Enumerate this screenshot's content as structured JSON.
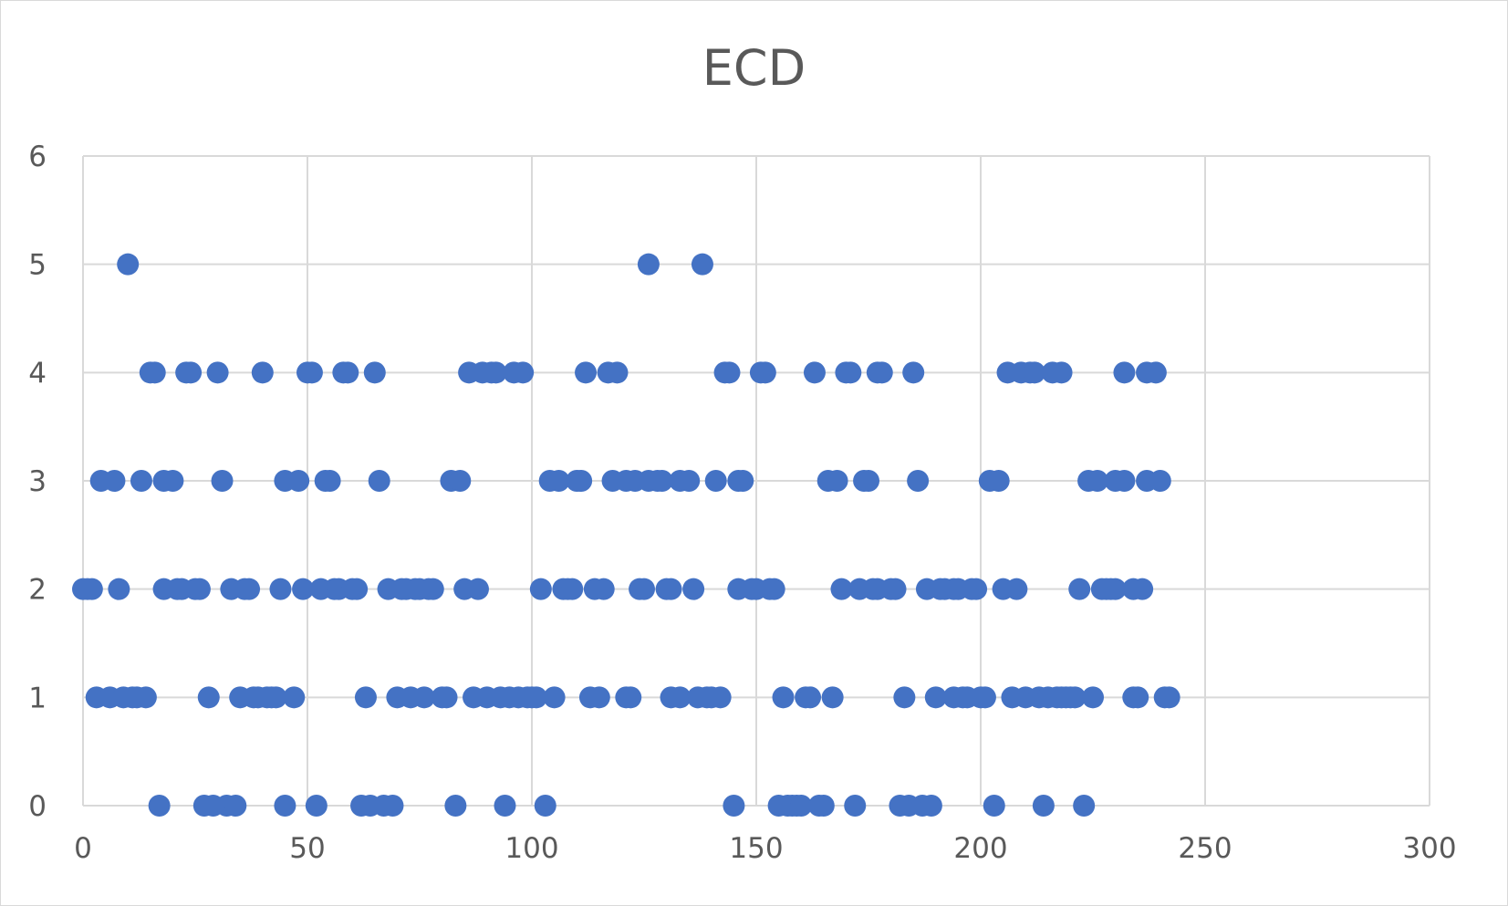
{
  "chart_data": {
    "type": "scatter",
    "title": "ECD",
    "xlabel": "",
    "ylabel": "",
    "xlim": [
      0,
      300
    ],
    "ylim": [
      0,
      6
    ],
    "x_ticks": [
      0,
      50,
      100,
      150,
      200,
      250,
      300
    ],
    "y_ticks": [
      0,
      1,
      2,
      3,
      4,
      5,
      6
    ],
    "grid": true,
    "legend": "none",
    "marker_color": "#4472C4",
    "series": [
      {
        "points": [
          [
            10,
            5
          ],
          [
            126,
            5
          ],
          [
            138,
            5
          ],
          [
            15,
            4
          ],
          [
            16,
            4
          ],
          [
            23,
            4
          ],
          [
            24,
            4
          ],
          [
            30,
            4
          ],
          [
            40,
            4
          ],
          [
            50,
            4
          ],
          [
            51,
            4
          ],
          [
            58,
            4
          ],
          [
            59,
            4
          ],
          [
            65,
            4
          ],
          [
            86,
            4
          ],
          [
            89,
            4
          ],
          [
            91,
            4
          ],
          [
            92,
            4
          ],
          [
            96,
            4
          ],
          [
            98,
            4
          ],
          [
            112,
            4
          ],
          [
            117,
            4
          ],
          [
            119,
            4
          ],
          [
            143,
            4
          ],
          [
            144,
            4
          ],
          [
            151,
            4
          ],
          [
            152,
            4
          ],
          [
            163,
            4
          ],
          [
            170,
            4
          ],
          [
            171,
            4
          ],
          [
            177,
            4
          ],
          [
            178,
            4
          ],
          [
            185,
            4
          ],
          [
            206,
            4
          ],
          [
            209,
            4
          ],
          [
            211,
            4
          ],
          [
            212,
            4
          ],
          [
            216,
            4
          ],
          [
            218,
            4
          ],
          [
            232,
            4
          ],
          [
            237,
            4
          ],
          [
            239,
            4
          ],
          [
            4,
            3
          ],
          [
            7,
            3
          ],
          [
            13,
            3
          ],
          [
            18,
            3
          ],
          [
            20,
            3
          ],
          [
            31,
            3
          ],
          [
            45,
            3
          ],
          [
            48,
            3
          ],
          [
            54,
            3
          ],
          [
            55,
            3
          ],
          [
            66,
            3
          ],
          [
            82,
            3
          ],
          [
            84,
            3
          ],
          [
            104,
            3
          ],
          [
            106,
            3
          ],
          [
            110,
            3
          ],
          [
            111,
            3
          ],
          [
            118,
            3
          ],
          [
            121,
            3
          ],
          [
            123,
            3
          ],
          [
            126,
            3
          ],
          [
            128,
            3
          ],
          [
            129,
            3
          ],
          [
            133,
            3
          ],
          [
            135,
            3
          ],
          [
            141,
            3
          ],
          [
            146,
            3
          ],
          [
            147,
            3
          ],
          [
            166,
            3
          ],
          [
            168,
            3
          ],
          [
            174,
            3
          ],
          [
            175,
            3
          ],
          [
            186,
            3
          ],
          [
            202,
            3
          ],
          [
            204,
            3
          ],
          [
            224,
            3
          ],
          [
            226,
            3
          ],
          [
            230,
            3
          ],
          [
            232,
            3
          ],
          [
            237,
            3
          ],
          [
            240,
            3
          ],
          [
            0,
            2
          ],
          [
            1,
            2
          ],
          [
            2,
            2
          ],
          [
            8,
            2
          ],
          [
            18,
            2
          ],
          [
            21,
            2
          ],
          [
            22,
            2
          ],
          [
            25,
            2
          ],
          [
            26,
            2
          ],
          [
            33,
            2
          ],
          [
            36,
            2
          ],
          [
            37,
            2
          ],
          [
            44,
            2
          ],
          [
            49,
            2
          ],
          [
            53,
            2
          ],
          [
            56,
            2
          ],
          [
            57,
            2
          ],
          [
            60,
            2
          ],
          [
            61,
            2
          ],
          [
            68,
            2
          ],
          [
            71,
            2
          ],
          [
            72,
            2
          ],
          [
            74,
            2
          ],
          [
            75,
            2
          ],
          [
            77,
            2
          ],
          [
            78,
            2
          ],
          [
            85,
            2
          ],
          [
            88,
            2
          ],
          [
            102,
            2
          ],
          [
            107,
            2
          ],
          [
            108,
            2
          ],
          [
            109,
            2
          ],
          [
            114,
            2
          ],
          [
            116,
            2
          ],
          [
            124,
            2
          ],
          [
            125,
            2
          ],
          [
            130,
            2
          ],
          [
            131,
            2
          ],
          [
            136,
            2
          ],
          [
            146,
            2
          ],
          [
            149,
            2
          ],
          [
            150,
            2
          ],
          [
            153,
            2
          ],
          [
            154,
            2
          ],
          [
            169,
            2
          ],
          [
            173,
            2
          ],
          [
            176,
            2
          ],
          [
            177,
            2
          ],
          [
            180,
            2
          ],
          [
            181,
            2
          ],
          [
            188,
            2
          ],
          [
            191,
            2
          ],
          [
            192,
            2
          ],
          [
            194,
            2
          ],
          [
            195,
            2
          ],
          [
            198,
            2
          ],
          [
            199,
            2
          ],
          [
            205,
            2
          ],
          [
            208,
            2
          ],
          [
            222,
            2
          ],
          [
            227,
            2
          ],
          [
            228,
            2
          ],
          [
            229,
            2
          ],
          [
            230,
            2
          ],
          [
            234,
            2
          ],
          [
            236,
            2
          ],
          [
            3,
            1
          ],
          [
            6,
            1
          ],
          [
            9,
            1
          ],
          [
            11,
            1
          ],
          [
            12,
            1
          ],
          [
            14,
            1
          ],
          [
            28,
            1
          ],
          [
            35,
            1
          ],
          [
            38,
            1
          ],
          [
            39,
            1
          ],
          [
            41,
            1
          ],
          [
            42,
            1
          ],
          [
            43,
            1
          ],
          [
            47,
            1
          ],
          [
            63,
            1
          ],
          [
            70,
            1
          ],
          [
            73,
            1
          ],
          [
            76,
            1
          ],
          [
            80,
            1
          ],
          [
            81,
            1
          ],
          [
            87,
            1
          ],
          [
            90,
            1
          ],
          [
            93,
            1
          ],
          [
            95,
            1
          ],
          [
            97,
            1
          ],
          [
            99,
            1
          ],
          [
            100,
            1
          ],
          [
            101,
            1
          ],
          [
            105,
            1
          ],
          [
            113,
            1
          ],
          [
            115,
            1
          ],
          [
            121,
            1
          ],
          [
            122,
            1
          ],
          [
            131,
            1
          ],
          [
            133,
            1
          ],
          [
            137,
            1
          ],
          [
            139,
            1
          ],
          [
            140,
            1
          ],
          [
            142,
            1
          ],
          [
            156,
            1
          ],
          [
            161,
            1
          ],
          [
            162,
            1
          ],
          [
            167,
            1
          ],
          [
            183,
            1
          ],
          [
            190,
            1
          ],
          [
            194,
            1
          ],
          [
            196,
            1
          ],
          [
            197,
            1
          ],
          [
            200,
            1
          ],
          [
            201,
            1
          ],
          [
            207,
            1
          ],
          [
            210,
            1
          ],
          [
            213,
            1
          ],
          [
            215,
            1
          ],
          [
            217,
            1
          ],
          [
            218,
            1
          ],
          [
            219,
            1
          ],
          [
            220,
            1
          ],
          [
            221,
            1
          ],
          [
            225,
            1
          ],
          [
            234,
            1
          ],
          [
            235,
            1
          ],
          [
            241,
            1
          ],
          [
            242,
            1
          ],
          [
            17,
            0
          ],
          [
            27,
            0
          ],
          [
            29,
            0
          ],
          [
            32,
            0
          ],
          [
            34,
            0
          ],
          [
            45,
            0
          ],
          [
            52,
            0
          ],
          [
            62,
            0
          ],
          [
            64,
            0
          ],
          [
            67,
            0
          ],
          [
            69,
            0
          ],
          [
            83,
            0
          ],
          [
            94,
            0
          ],
          [
            103,
            0
          ],
          [
            145,
            0
          ],
          [
            155,
            0
          ],
          [
            157,
            0
          ],
          [
            158,
            0
          ],
          [
            159,
            0
          ],
          [
            160,
            0
          ],
          [
            164,
            0
          ],
          [
            165,
            0
          ],
          [
            172,
            0
          ],
          [
            182,
            0
          ],
          [
            184,
            0
          ],
          [
            187,
            0
          ],
          [
            189,
            0
          ],
          [
            203,
            0
          ],
          [
            214,
            0
          ],
          [
            223,
            0
          ]
        ]
      }
    ]
  }
}
